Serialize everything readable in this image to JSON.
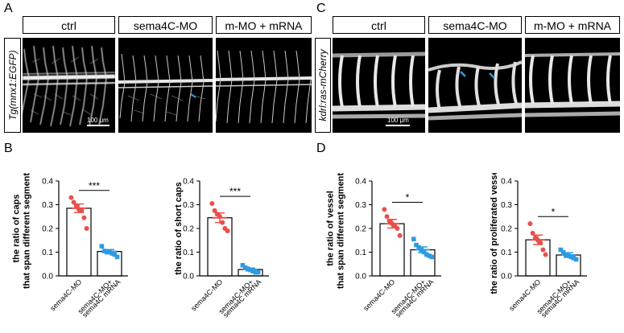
{
  "panels": {
    "A": {
      "letter": "A",
      "headers": [
        "ctrl",
        "sema4C-MO",
        "m-MO + mRNA"
      ],
      "side_label": "Tg(mnx1:EGFP)",
      "scale": "100 μm"
    },
    "B": {
      "letter": "B"
    },
    "C": {
      "letter": "C",
      "headers": [
        "ctrl",
        "sema4C-MO",
        "m-MO + mRNA"
      ],
      "side_label": "kdrl:ras-mCherry",
      "scale": "100 μm"
    },
    "D": {
      "letter": "D"
    }
  },
  "colors": {
    "red": "#e8504b",
    "blue": "#2f9be0",
    "arrow": "#2f9be0"
  },
  "chart_data": [
    {
      "type": "bar",
      "panel": "B",
      "ylabel": "the ratio of caps that span different segments",
      "ylabel_lines": [
        "the ratio of caps",
        "that span different segments"
      ],
      "ylim": [
        0,
        0.4
      ],
      "yticks": [
        "0.0",
        "0.1",
        "0.2",
        "0.3",
        "0.4"
      ],
      "categories": [
        "sema4C-MO",
        "sema4C-MO+ sema4C mRNA"
      ],
      "category_lines": [
        [
          "sema4C-MO"
        ],
        [
          "sema4C-MO+",
          "sema4C mRNA"
        ]
      ],
      "values": [
        0.285,
        0.103
      ],
      "errors": [
        0.018,
        0.008
      ],
      "points": [
        [
          0.33,
          0.31,
          0.295,
          0.28,
          0.275,
          0.245,
          0.2
        ],
        [
          0.125,
          0.105,
          0.1,
          0.1,
          0.095,
          0.09,
          0.08
        ]
      ],
      "significance": "***"
    },
    {
      "type": "bar",
      "panel": "B",
      "ylabel": "the ratio of short caps",
      "ylabel_lines": [
        "the ratio of short caps"
      ],
      "ylim": [
        0,
        0.4
      ],
      "yticks": [
        "0.0",
        "0.1",
        "0.2",
        "0.3",
        "0.4"
      ],
      "categories": [
        "sema4C-MO",
        "sema4C-MO+ sema4C mRNA"
      ],
      "category_lines": [
        [
          "sema4C-MO"
        ],
        [
          "sema4C-MO+",
          "sema4C mRNA"
        ]
      ],
      "values": [
        0.245,
        0.027
      ],
      "errors": [
        0.02,
        0.006
      ],
      "points": [
        [
          0.305,
          0.275,
          0.26,
          0.25,
          0.225,
          0.2,
          0.19
        ],
        [
          0.045,
          0.035,
          0.03,
          0.025,
          0.02,
          0.015,
          0.015
        ]
      ],
      "significance": "***"
    },
    {
      "type": "bar",
      "panel": "D",
      "ylabel": "the ratio of vessel that span different segments",
      "ylabel_lines": [
        "the ratio of vessel",
        "that span different segments"
      ],
      "ylim": [
        0,
        0.4
      ],
      "yticks": [
        "0.0",
        "0.1",
        "0.2",
        "0.3",
        "0.4"
      ],
      "categories": [
        "sema4C-MO",
        "sema4C-MO+ sema4C mRNA"
      ],
      "category_lines": [
        [
          "sema4C-MO"
        ],
        [
          "sema4C-MO+",
          "sema4C mRNA"
        ]
      ],
      "values": [
        0.22,
        0.11
      ],
      "errors": [
        0.018,
        0.012
      ],
      "points": [
        [
          0.28,
          0.25,
          0.23,
          0.22,
          0.21,
          0.2,
          0.17
        ],
        [
          0.155,
          0.13,
          0.12,
          0.11,
          0.1,
          0.09,
          0.085,
          0.08
        ]
      ],
      "significance": "*"
    },
    {
      "type": "bar",
      "panel": "D",
      "ylabel": "the ratio of proliferated vessels",
      "ylabel_lines": [
        "the ratio of proliferated vessels"
      ],
      "ylim": [
        0,
        0.4
      ],
      "yticks": [
        "0.0",
        "0.1",
        "0.2",
        "0.3",
        "0.4"
      ],
      "categories": [
        "sema4C-MO",
        "sema4C-MO+ sema4C mRNA"
      ],
      "category_lines": [
        [
          "sema4C-MO"
        ],
        [
          "sema4C-MO+",
          "sema4C mRNA"
        ]
      ],
      "values": [
        0.152,
        0.088
      ],
      "errors": [
        0.02,
        0.01
      ],
      "points": [
        [
          0.22,
          0.18,
          0.16,
          0.15,
          0.14,
          0.11,
          0.09
        ],
        [
          0.11,
          0.1,
          0.09,
          0.085,
          0.08,
          0.075,
          0.07
        ]
      ],
      "significance": "*"
    }
  ]
}
